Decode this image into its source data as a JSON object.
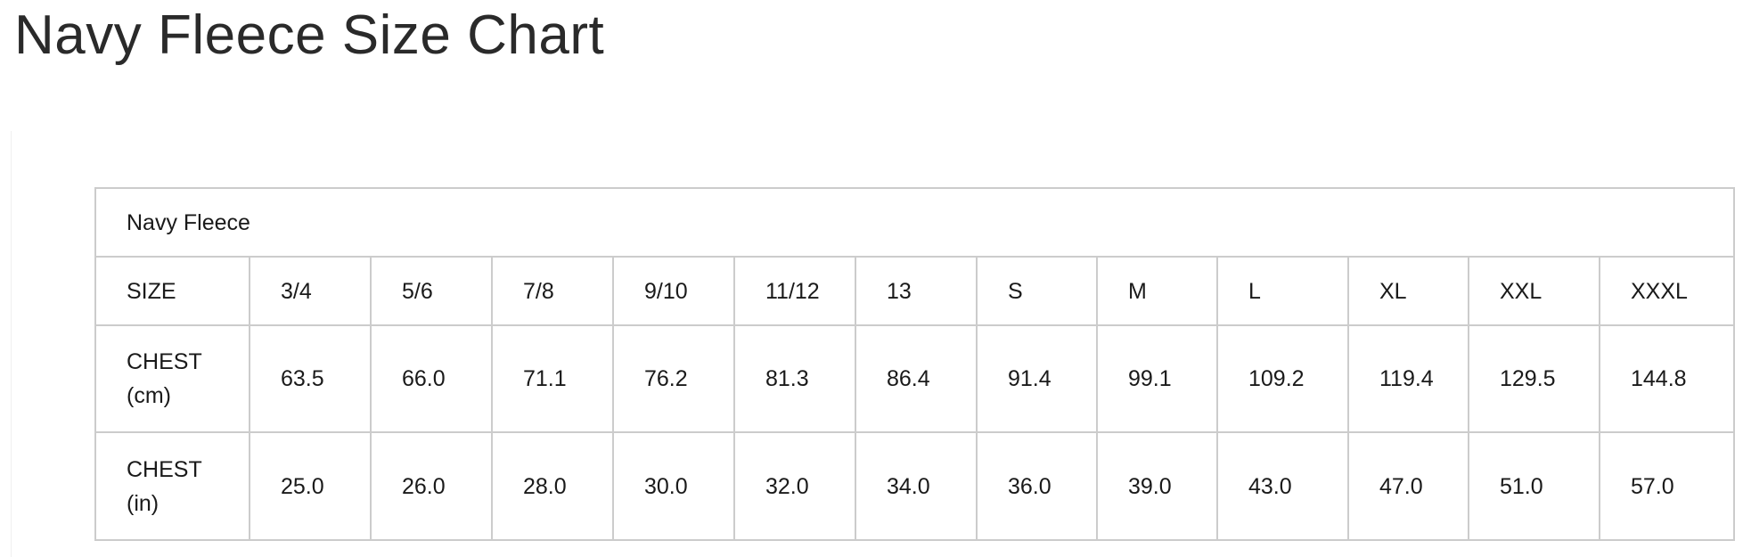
{
  "page_title": "Navy Fleece Size Chart",
  "table": {
    "caption": "Navy Fleece",
    "rows": [
      {
        "label": "SIZE",
        "values": [
          "3/4",
          "5/6",
          "7/8",
          "9/10",
          "11/12",
          "13",
          "S",
          "M",
          "L",
          "XL",
          "XXL",
          "XXXL"
        ]
      },
      {
        "label_line1": "CHEST",
        "label_line2": "(cm)",
        "values": [
          "63.5",
          "66.0",
          "71.1",
          "76.2",
          "81.3",
          "86.4",
          "91.4",
          "99.1",
          "109.2",
          "119.4",
          "129.5",
          "144.8"
        ]
      },
      {
        "label_line1": "CHEST",
        "label_line2": "(in)",
        "values": [
          "25.0",
          "26.0",
          "28.0",
          "30.0",
          "32.0",
          "34.0",
          "36.0",
          "39.0",
          "43.0",
          "47.0",
          "51.0",
          "57.0"
        ]
      }
    ]
  }
}
